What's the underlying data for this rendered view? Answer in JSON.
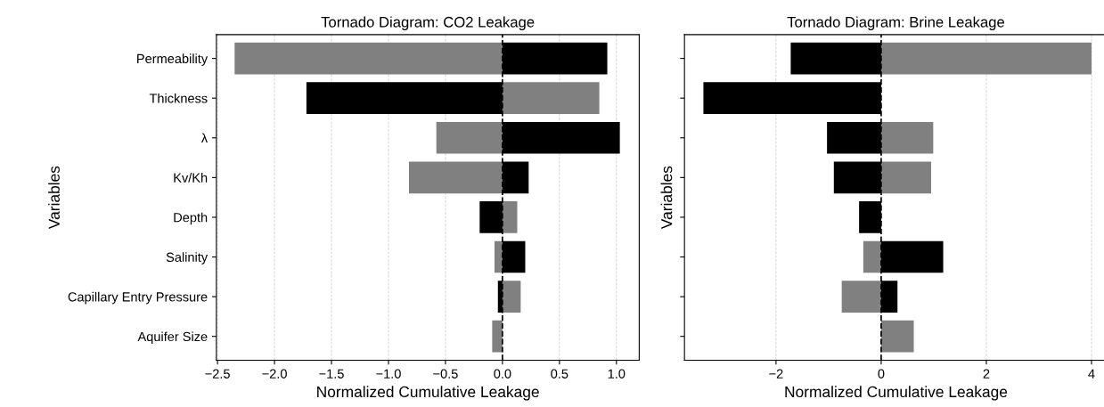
{
  "chart_data": [
    {
      "type": "bar",
      "orientation": "horizontal",
      "title": "Tornado Diagram: CO2 Leakage",
      "xlabel": "Normalized Cumulative Leakage",
      "ylabel": "Variables",
      "categories": [
        "Permeability",
        "Thickness",
        "λ",
        "Kv/Kh",
        "Depth",
        "Salinity",
        "Capillary Entry Pressure",
        "Aquifer Size"
      ],
      "series": [
        {
          "values": [
            -2.35,
            -1.72,
            -0.58,
            -0.82,
            -0.2,
            -0.07,
            -0.04,
            -0.09
          ],
          "colors": [
            "#808080",
            "#000000",
            "#808080",
            "#808080",
            "#000000",
            "#808080",
            "#000000",
            "#808080"
          ]
        },
        {
          "values": [
            0.92,
            0.85,
            1.03,
            0.23,
            0.13,
            0.2,
            0.16,
            null
          ],
          "colors": [
            "#000000",
            "#808080",
            "#000000",
            "#000000",
            "#808080",
            "#000000",
            "#808080",
            "#000000"
          ]
        }
      ],
      "xlim": [
        -2.51,
        1.2
      ],
      "xticks": [
        -2.5,
        {
          "value": -2,
          "label": "−2.0"
        },
        -1.5,
        {
          "value": -1,
          "label": "−1.0"
        },
        -0.5,
        {
          "value": 0,
          "label": "0.0"
        },
        0.5,
        {
          "value": 1,
          "label": "1.0"
        }
      ],
      "grid": "x",
      "stacked": true,
      "ref_lines": [
        {
          "axis": "x",
          "value": 0,
          "color": "#000000",
          "line_style": "dashed"
        }
      ]
    },
    {
      "type": "bar",
      "orientation": "horizontal",
      "title": "Tornado Diagram: Brine Leakage",
      "xlabel": "Normalized Cumulative Leakage",
      "ylabel": "Variables",
      "categories": [
        null,
        null,
        null,
        null,
        null,
        null,
        null,
        null
      ],
      "series": [
        {
          "values": [
            -1.72,
            -3.38,
            -1.03,
            -0.9,
            -0.42,
            -0.34,
            -0.75,
            null
          ],
          "colors": [
            "#000000",
            "#000000",
            "#000000",
            "#000000",
            "#000000",
            "#808080",
            "#808080",
            "#808080"
          ]
        },
        {
          "values": [
            4.0,
            null,
            0.99,
            0.95,
            null,
            1.18,
            0.31,
            0.62
          ],
          "colors": [
            "#808080",
            "#808080",
            "#808080",
            "#808080",
            "#808080",
            "#000000",
            "#000000",
            "#808080"
          ]
        }
      ],
      "xlim": [
        -3.74,
        4.3
      ],
      "xticks": [
        -2,
        0,
        2,
        4
      ],
      "grid": "x",
      "tick_labels": "x",
      "stacked": true,
      "ref_lines": [
        {
          "axis": "x",
          "value": 0,
          "color": "#000000",
          "line_style": "dashed"
        }
      ]
    }
  ]
}
